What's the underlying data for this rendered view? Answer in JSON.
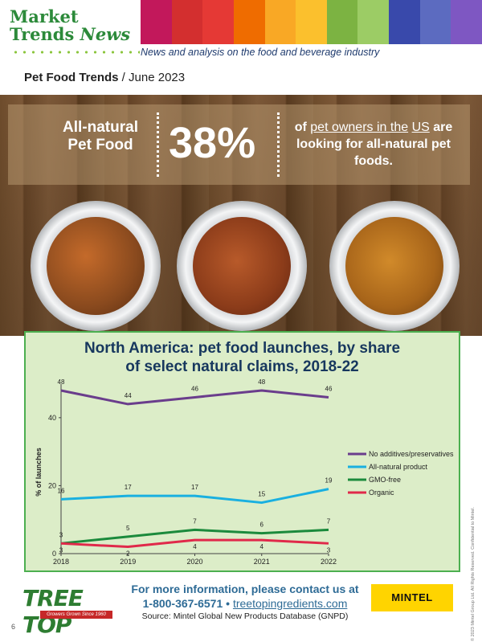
{
  "header": {
    "brand_line1": "Market",
    "brand_line2a": "Trends",
    "brand_line2b": "News",
    "tagline": "News and analysis on the food and beverage industry",
    "fruit_colors": [
      "#c2185b",
      "#d32f2f",
      "#e53935",
      "#ef6c00",
      "#f9a825",
      "#fbc02d",
      "#7cb342",
      "#9ccc65",
      "#3949ab",
      "#5c6bc0",
      "#7e57c2"
    ]
  },
  "page": {
    "title_bold": "Pet Food Trends",
    "title_sep": " / ",
    "title_date": "June 2023"
  },
  "banner": {
    "label_line1": "All-natural",
    "label_line2": "Pet Food",
    "percent": "38%",
    "text_of": "of ",
    "text_link1": "pet owners in the",
    "text_link2": "US",
    "text_rest": " are looking for all-natural pet foods."
  },
  "chart_data": {
    "type": "line",
    "title_line1": "North America: pet food launches, by share",
    "title_line2": "of select natural claims, 2018-22",
    "xlabel": "",
    "ylabel": "% of launches",
    "x": [
      "2018",
      "2019",
      "2020",
      "2021",
      "2022"
    ],
    "ylim": [
      0,
      48
    ],
    "yticks": [
      0,
      20,
      40
    ],
    "grid": false,
    "legend_position": "right",
    "series": [
      {
        "name": "No additives/preservatives",
        "color": "#6a3d8c",
        "values": [
          48,
          44,
          46,
          48,
          46
        ]
      },
      {
        "name": "All-natural product",
        "color": "#1ab0e0",
        "values": [
          16,
          17,
          17,
          15,
          19
        ]
      },
      {
        "name": "GMO-free",
        "color": "#1b8a3c",
        "values": [
          3,
          5,
          7,
          6,
          7
        ]
      },
      {
        "name": "Organic",
        "color": "#e0294a",
        "values": [
          3,
          2,
          4,
          4,
          3
        ]
      }
    ]
  },
  "footer": {
    "logo_text": "TREE TOP",
    "logo_sub": "Growers Grown Since 1960",
    "contact_head": "For more information, please contact us at",
    "phone": "1-800-367-6571",
    "bullet": " • ",
    "website": "treetopingredients.com",
    "source": "Source: Mintel Global New Products Database (GNPD)",
    "mintel": "MINTEL",
    "page_number": "6",
    "copyright": "© 2023 Mintel Group Ltd. All Rights Reserved. Confidential to Mintel."
  }
}
